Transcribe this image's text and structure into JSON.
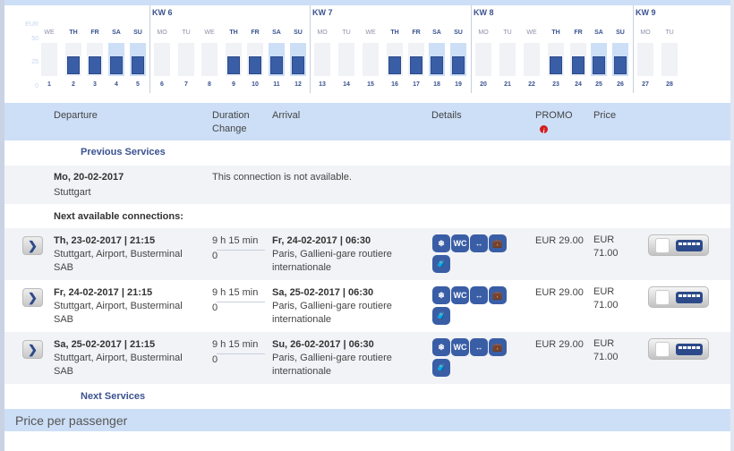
{
  "calendar": {
    "currency": "EUR",
    "y_ticks": [
      "50",
      "25",
      "0"
    ],
    "max": 50,
    "weeks": [
      {
        "label": "KW 6",
        "start_day": 6
      },
      {
        "label": "KW 7",
        "start_day": 13
      },
      {
        "label": "KW 8",
        "start_day": 20
      },
      {
        "label": "KW 9",
        "start_day": 27
      }
    ],
    "days": [
      {
        "wd": "WE",
        "d": "1",
        "price": null,
        "weekend": false
      },
      {
        "wd": "TH",
        "d": "2",
        "price": 29,
        "weekend": false
      },
      {
        "wd": "FR",
        "d": "3",
        "price": 29,
        "weekend": false
      },
      {
        "wd": "SA",
        "d": "4",
        "price": 29,
        "weekend": true
      },
      {
        "wd": "SU",
        "d": "5",
        "price": 29,
        "weekend": true
      },
      {
        "wd": "MO",
        "d": "6",
        "price": null,
        "weekend": false
      },
      {
        "wd": "TU",
        "d": "7",
        "price": null,
        "weekend": false
      },
      {
        "wd": "WE",
        "d": "8",
        "price": null,
        "weekend": false
      },
      {
        "wd": "TH",
        "d": "9",
        "price": 29,
        "weekend": false
      },
      {
        "wd": "FR",
        "d": "10",
        "price": 29,
        "weekend": false
      },
      {
        "wd": "SA",
        "d": "11",
        "price": 29,
        "weekend": true
      },
      {
        "wd": "SU",
        "d": "12",
        "price": 29,
        "weekend": true
      },
      {
        "wd": "MO",
        "d": "13",
        "price": null,
        "weekend": false
      },
      {
        "wd": "TU",
        "d": "14",
        "price": null,
        "weekend": false
      },
      {
        "wd": "WE",
        "d": "15",
        "price": null,
        "weekend": false
      },
      {
        "wd": "TH",
        "d": "16",
        "price": 29,
        "weekend": false
      },
      {
        "wd": "FR",
        "d": "17",
        "price": 29,
        "weekend": false
      },
      {
        "wd": "SA",
        "d": "18",
        "price": 29,
        "weekend": true
      },
      {
        "wd": "SU",
        "d": "19",
        "price": 29,
        "weekend": true
      },
      {
        "wd": "MO",
        "d": "20",
        "price": null,
        "weekend": false
      },
      {
        "wd": "TU",
        "d": "21",
        "price": null,
        "weekend": false
      },
      {
        "wd": "WE",
        "d": "22",
        "price": null,
        "weekend": false
      },
      {
        "wd": "TH",
        "d": "23",
        "price": 29,
        "weekend": false
      },
      {
        "wd": "FR",
        "d": "24",
        "price": 29,
        "weekend": false
      },
      {
        "wd": "SA",
        "d": "25",
        "price": 29,
        "weekend": true
      },
      {
        "wd": "SU",
        "d": "26",
        "price": 29,
        "weekend": true
      },
      {
        "wd": "MO",
        "d": "27",
        "price": null,
        "weekend": false
      },
      {
        "wd": "TU",
        "d": "28",
        "price": null,
        "weekend": false
      }
    ]
  },
  "table": {
    "headers": {
      "departure": "Departure",
      "duration": "Duration",
      "change": "Change",
      "arrival": "Arrival",
      "details": "Details",
      "promo": "PROMO",
      "price": "Price",
      "promo_info": "i"
    },
    "previous": "Previous Services",
    "next": "Next Services",
    "unavailable": {
      "date": "Mo, 20-02-2017",
      "place": "Stuttgart",
      "message": "This connection is not available."
    },
    "next_available": "Next available connections:",
    "expand_glyph": "❯",
    "icons": [
      {
        "name": "air-conditioning",
        "glyph": "❄"
      },
      {
        "name": "wc",
        "glyph": "WC"
      },
      {
        "name": "legroom",
        "glyph": "↔"
      },
      {
        "name": "hand-luggage",
        "glyph": "💼"
      },
      {
        "name": "luggage",
        "glyph": "🧳"
      }
    ],
    "rows": [
      {
        "dep": "Th, 23-02-2017 | 21:15",
        "dep_place": "Stuttgart, Airport, Busterminal SAB",
        "duration": "9 h 15 min",
        "change": "0",
        "arr": "Fr, 24-02-2017 | 06:30",
        "arr_place": "Paris, Gallieni-gare routiere internationale",
        "promo": "EUR 29.00",
        "price": "EUR 71.00"
      },
      {
        "dep": "Fr, 24-02-2017 | 21:15",
        "dep_place": "Stuttgart, Airport, Busterminal SAB",
        "duration": "9 h 15 min",
        "change": "0",
        "arr": "Sa, 25-02-2017 | 06:30",
        "arr_place": "Paris, Gallieni-gare routiere internationale",
        "promo": "EUR 29.00",
        "price": "EUR 71.00"
      },
      {
        "dep": "Sa, 25-02-2017 | 21:15",
        "dep_place": "Stuttgart, Airport, Busterminal SAB",
        "duration": "9 h 15 min",
        "change": "0",
        "arr": "Su, 26-02-2017 | 06:30",
        "arr_place": "Paris, Gallieni-gare routiere internationale",
        "promo": "EUR 29.00",
        "price": "EUR 71.00"
      }
    ]
  },
  "footer": {
    "price_per_passenger": "Price per passenger"
  }
}
